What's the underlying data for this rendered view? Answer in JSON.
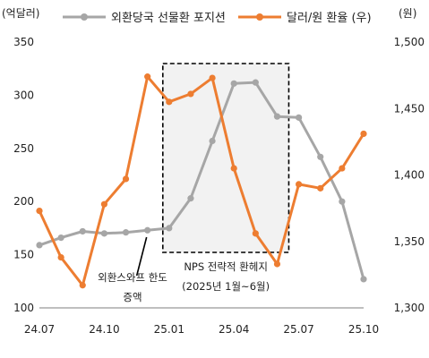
{
  "chart_data": {
    "type": "line",
    "left_unit": "(억달러)",
    "right_unit": "(원)",
    "x": [
      "2024-07",
      "2024-08",
      "2024-09",
      "2024-10",
      "2024-11",
      "2024-12",
      "2025-01",
      "2025-02",
      "2025-03",
      "2025-04",
      "2025-05",
      "2025-06",
      "2025-07",
      "2025-08",
      "2025-09",
      "2025-10"
    ],
    "x_tick_labels": [
      {
        "x": "2024-07",
        "label": "24.07"
      },
      {
        "x": "2024-10",
        "label": "24.10"
      },
      {
        "x": "2025-01",
        "label": "25.01"
      },
      {
        "x": "2025-04",
        "label": "25.04"
      },
      {
        "x": "2025-07",
        "label": "25.07"
      },
      {
        "x": "2025-10",
        "label": "25.10"
      }
    ],
    "y_left": {
      "range": [
        100,
        350
      ],
      "ticks": [
        "100",
        "150",
        "200",
        "250",
        "300",
        "350"
      ]
    },
    "y_right": {
      "range": [
        1300,
        1500
      ],
      "ticks": [
        "1,300",
        "1,350",
        "1,400",
        "1,450",
        "1,500"
      ]
    },
    "series": [
      {
        "name": "외환당국 선물환 포지션",
        "axis": "left",
        "color": "#a6a6a6",
        "values": [
          159,
          166,
          172,
          170,
          171,
          173,
          175,
          203,
          257,
          311,
          312,
          280,
          279,
          242,
          200,
          127
        ]
      },
      {
        "name": "달러/원 환율 (우)",
        "axis": "right",
        "color": "#ed7d31",
        "values": [
          1373,
          1338,
          1317,
          1378,
          1397,
          1474,
          1455,
          1461,
          1473,
          1405,
          1356,
          1333,
          1393,
          1390,
          1405,
          1431
        ]
      }
    ],
    "highlight": {
      "start": "2025-01",
      "end": "2025-06",
      "label_line1": "NPS 전략적 환헤지",
      "label_line2": "(2025년 1월~6월)"
    },
    "annotation": {
      "line1": "외환스와프 한도",
      "line2": "증액",
      "at": "2024-12"
    },
    "legend_position": "top",
    "grid": false
  }
}
